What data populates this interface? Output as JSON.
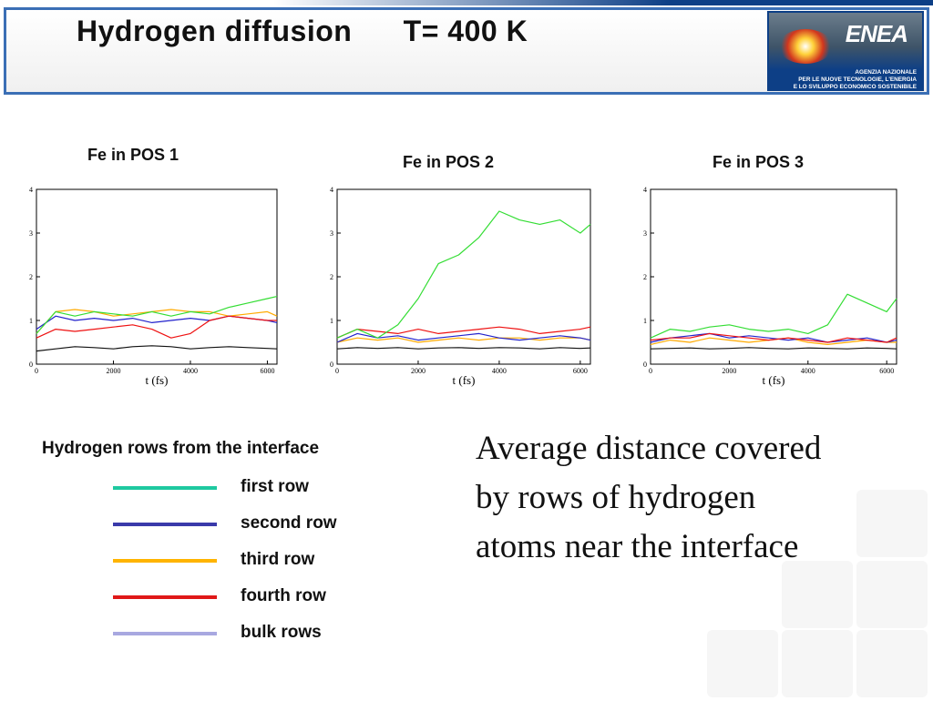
{
  "slide": {
    "title": "Hydrogen diffusion      T= 400 K",
    "logo": {
      "wordmark": "ENEA",
      "agency_lines": [
        "AGENZIA NAZIONALE",
        "PER LE NUOVE TECNOLOGIE, L'ENERGIA",
        "E LO SVILUPPO ECONOMICO SOSTENIBILE"
      ]
    },
    "caption": "Average distance covered by rows of hydrogen atoms near the interface"
  },
  "legend": {
    "title": "Hydrogen rows from the interface",
    "items": [
      {
        "label": "first row",
        "color": "#1ec9a0"
      },
      {
        "label": "second row",
        "color": "#3a3aaa"
      },
      {
        "label": "third row",
        "color": "#ffb400"
      },
      {
        "label": "fourth row",
        "color": "#e01818"
      },
      {
        "label": "bulk rows",
        "color": "#a8a8e0"
      }
    ]
  },
  "plot_colors": {
    "first": "#33dd33",
    "second": "#2222cc",
    "third": "#ffaa00",
    "fourth": "#ee1111",
    "bulk": "#111111"
  },
  "chart_data": [
    {
      "type": "line",
      "title": "Fe in POS 1",
      "xlabel": "t (fs)",
      "ylabel": "",
      "xlim": [
        0,
        6250
      ],
      "ylim": [
        0,
        4
      ],
      "xticks": [
        0,
        2000,
        4000,
        6000
      ],
      "yticks": [
        0,
        1,
        2,
        3,
        4
      ],
      "x": [
        0,
        500,
        1000,
        1500,
        2000,
        2500,
        3000,
        3500,
        4000,
        4500,
        5000,
        5500,
        6000,
        6250
      ],
      "series": [
        {
          "key": "first",
          "values": [
            0.7,
            1.2,
            1.1,
            1.2,
            1.15,
            1.1,
            1.2,
            1.1,
            1.2,
            1.15,
            1.3,
            1.4,
            1.5,
            1.55
          ]
        },
        {
          "key": "second",
          "values": [
            0.8,
            1.1,
            1.0,
            1.05,
            1.0,
            1.05,
            0.95,
            1.0,
            1.05,
            1.0,
            1.1,
            1.05,
            1.0,
            0.95
          ]
        },
        {
          "key": "third",
          "values": [
            0.7,
            1.2,
            1.25,
            1.2,
            1.1,
            1.15,
            1.2,
            1.25,
            1.2,
            1.2,
            1.1,
            1.15,
            1.2,
            1.1
          ]
        },
        {
          "key": "fourth",
          "values": [
            0.6,
            0.8,
            0.75,
            0.8,
            0.85,
            0.9,
            0.8,
            0.6,
            0.7,
            1.0,
            1.1,
            1.05,
            1.0,
            1.0
          ]
        },
        {
          "key": "bulk",
          "values": [
            0.3,
            0.35,
            0.4,
            0.38,
            0.35,
            0.4,
            0.42,
            0.4,
            0.35,
            0.38,
            0.4,
            0.38,
            0.36,
            0.35
          ]
        }
      ]
    },
    {
      "type": "line",
      "title": "Fe in POS 2",
      "xlabel": "t (fs)",
      "ylabel": "",
      "xlim": [
        0,
        6250
      ],
      "ylim": [
        0,
        4
      ],
      "xticks": [
        0,
        2000,
        4000,
        6000
      ],
      "yticks": [
        0,
        1,
        2,
        3,
        4
      ],
      "x": [
        0,
        500,
        1000,
        1500,
        2000,
        2500,
        3000,
        3500,
        4000,
        4500,
        5000,
        5500,
        6000,
        6250
      ],
      "series": [
        {
          "key": "first",
          "values": [
            0.6,
            0.8,
            0.6,
            0.9,
            1.5,
            2.3,
            2.5,
            2.9,
            3.5,
            3.3,
            3.2,
            3.3,
            3.0,
            3.2
          ]
        },
        {
          "key": "second",
          "values": [
            0.5,
            0.7,
            0.6,
            0.65,
            0.55,
            0.6,
            0.65,
            0.7,
            0.6,
            0.55,
            0.6,
            0.65,
            0.6,
            0.55
          ]
        },
        {
          "key": "third",
          "values": [
            0.5,
            0.6,
            0.55,
            0.6,
            0.5,
            0.55,
            0.6,
            0.55,
            0.6,
            0.6,
            0.55,
            0.6,
            0.6,
            0.55
          ]
        },
        {
          "key": "fourth",
          "values": [
            0.6,
            0.8,
            0.75,
            0.7,
            0.8,
            0.7,
            0.75,
            0.8,
            0.85,
            0.8,
            0.7,
            0.75,
            0.8,
            0.85
          ]
        },
        {
          "key": "bulk",
          "values": [
            0.35,
            0.38,
            0.36,
            0.38,
            0.35,
            0.37,
            0.38,
            0.36,
            0.38,
            0.37,
            0.35,
            0.38,
            0.36,
            0.37
          ]
        }
      ]
    },
    {
      "type": "line",
      "title": "Fe in POS 3",
      "xlabel": "t (fs)",
      "ylabel": "",
      "xlim": [
        0,
        6250
      ],
      "ylim": [
        0,
        4
      ],
      "xticks": [
        0,
        2000,
        4000,
        6000
      ],
      "yticks": [
        0,
        1,
        2,
        3,
        4
      ],
      "x": [
        0,
        500,
        1000,
        1500,
        2000,
        2500,
        3000,
        3500,
        4000,
        4500,
        5000,
        5500,
        6000,
        6250
      ],
      "series": [
        {
          "key": "first",
          "values": [
            0.6,
            0.8,
            0.75,
            0.85,
            0.9,
            0.8,
            0.75,
            0.8,
            0.7,
            0.9,
            1.6,
            1.4,
            1.2,
            1.5
          ]
        },
        {
          "key": "second",
          "values": [
            0.5,
            0.6,
            0.65,
            0.7,
            0.6,
            0.65,
            0.6,
            0.55,
            0.6,
            0.5,
            0.55,
            0.6,
            0.5,
            0.55
          ]
        },
        {
          "key": "third",
          "values": [
            0.45,
            0.55,
            0.5,
            0.6,
            0.55,
            0.5,
            0.55,
            0.6,
            0.5,
            0.45,
            0.5,
            0.55,
            0.5,
            0.5
          ]
        },
        {
          "key": "fourth",
          "values": [
            0.55,
            0.6,
            0.6,
            0.7,
            0.65,
            0.6,
            0.55,
            0.6,
            0.55,
            0.5,
            0.6,
            0.55,
            0.5,
            0.6
          ]
        },
        {
          "key": "bulk",
          "values": [
            0.35,
            0.36,
            0.37,
            0.35,
            0.36,
            0.38,
            0.36,
            0.35,
            0.37,
            0.36,
            0.35,
            0.37,
            0.36,
            0.35
          ]
        }
      ]
    }
  ]
}
